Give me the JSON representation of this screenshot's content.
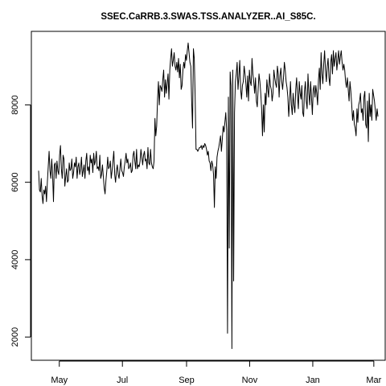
{
  "chart_data": {
    "type": "line",
    "title": "SSEC.CaRRB.3.SWAS.TSS.ANALYZER..AI_S85C.",
    "xlabel": "",
    "ylabel": "",
    "x_start": "2013-04-11",
    "x_end": "2014-03-05",
    "xlim": [
      "2013-04-04",
      "2014-03-12"
    ],
    "ylim": [
      1400,
      9900
    ],
    "x_ticks": [
      {
        "label": "May",
        "date": "2013-05-01"
      },
      {
        "label": "Jul",
        "date": "2013-07-01"
      },
      {
        "label": "Sep",
        "date": "2013-09-01"
      },
      {
        "label": "Nov",
        "date": "2013-11-01"
      },
      {
        "label": "Jan",
        "date": "2014-01-01"
      },
      {
        "label": "Mar",
        "date": "2014-03-01"
      }
    ],
    "y_ticks": [
      {
        "label": "2000",
        "value": 2000
      },
      {
        "label": "4000",
        "value": 4000
      },
      {
        "label": "6000",
        "value": 6000
      },
      {
        "label": "8000",
        "value": 8000
      }
    ],
    "grid": false,
    "legend": "none",
    "line_color": "#000000",
    "series": [
      {
        "values": [
          6300,
          5800,
          5750,
          6100,
          5650,
          5450,
          5800,
          5700,
          5900,
          5500,
          6000,
          6400,
          6800,
          6300,
          6100,
          6600,
          6200,
          5500,
          6450,
          6500,
          6100,
          6550,
          6300,
          6200,
          6700,
          6950,
          6350,
          6100,
          6700,
          6600,
          5900,
          6150,
          6350,
          6000,
          6050,
          6500,
          6300,
          6350,
          6600,
          6100,
          6250,
          6500,
          6400,
          6650,
          6100,
          6400,
          6500,
          6200,
          6350,
          6650,
          6150,
          6300,
          6450,
          6100,
          6550,
          6750,
          6300,
          6400,
          6200,
          6700,
          6500,
          6600,
          6250,
          6750,
          6450,
          6550,
          6800,
          6350,
          6400,
          6300,
          6700,
          6100,
          6200,
          6450,
          6150,
          5850,
          5700,
          6050,
          6300,
          6650,
          6350,
          6400,
          6550,
          6100,
          6300,
          6550,
          6800,
          6200,
          6000,
          6300,
          6450,
          6200,
          6100,
          6350,
          6600,
          6300,
          6250,
          6150,
          6400,
          6550,
          6750,
          6500,
          6600,
          6350,
          6400,
          6500,
          6250,
          6300,
          6700,
          6800,
          6550,
          6350,
          6850,
          6350,
          6450,
          6400,
          6550,
          6850,
          6650,
          6450,
          6700,
          6800,
          6550,
          6600,
          6350,
          6900,
          6500,
          6450,
          6850,
          6500,
          6400,
          6350,
          6550,
          7650,
          7200,
          7450,
          8150,
          8600,
          8000,
          8500,
          8450,
          8350,
          8650,
          8900,
          8200,
          8650,
          8300,
          8550,
          8800,
          8150,
          8900,
          9200,
          9450,
          9000,
          9150,
          9350,
          9000,
          8900,
          9100,
          8850,
          9200,
          8700,
          9050,
          8400,
          8500,
          8900,
          9100,
          8950,
          9300,
          9150,
          9400,
          9600,
          9350,
          9100,
          9000,
          8100,
          7400,
          9450,
          9200,
          8200,
          6850,
          6850,
          6800,
          6850,
          6900,
          6900,
          6950,
          6850,
          6950,
          6900,
          7000,
          6950,
          6850,
          6700,
          6800,
          6550,
          6500,
          6300,
          6550,
          6450,
          6200,
          5350,
          6400,
          6100,
          6650,
          6800,
          6900,
          7050,
          7200,
          6800,
          7100,
          7450,
          7300,
          7550,
          7800,
          7350,
          2100,
          8200,
          4300,
          8850,
          8500,
          1700,
          8900,
          3450,
          7800,
          8600,
          8800,
          9100,
          8400,
          8750,
          9150,
          8400,
          8150,
          8500,
          8600,
          9000,
          8800,
          8550,
          8200,
          8750,
          8100,
          8900,
          8600,
          8500,
          9200,
          8800,
          8600,
          8300,
          8700,
          8100,
          7950,
          8400,
          8800,
          8600,
          8300,
          7900,
          7200,
          8000,
          7300,
          8300,
          8000,
          8650,
          8400,
          8200,
          8800,
          8500,
          8400,
          8100,
          8300,
          8900,
          8700,
          8550,
          8450,
          9000,
          8800,
          8200,
          8750,
          8950,
          8600,
          8400,
          8700,
          9100,
          8900,
          8600,
          8450,
          8200,
          7700,
          8100,
          8600,
          8000,
          7750,
          8300,
          8000,
          7800,
          8400,
          8700,
          8250,
          7900,
          8600,
          8300,
          8150,
          8500,
          7800,
          7700,
          8350,
          8600,
          8100,
          7900,
          8800,
          8300,
          8000,
          8600,
          8200,
          7750,
          8400,
          8500,
          8200,
          8500,
          8300,
          8000,
          8650,
          8950,
          8400,
          9350,
          8800,
          8550,
          9050,
          9400,
          8900,
          8600,
          9000,
          9200,
          8700,
          8500,
          9100,
          9300,
          8800,
          9400,
          9000,
          9200,
          9350,
          8900,
          9150,
          9400,
          9050,
          9250,
          9400,
          9100,
          8900,
          9050,
          8900,
          8600,
          8450,
          8700,
          8400,
          8100,
          8600,
          8350,
          8000,
          7600,
          7850,
          7500,
          7400,
          7200,
          7900,
          7550,
          8000,
          8100,
          8300,
          7800,
          7900,
          7600,
          8200,
          8350,
          7500,
          7400,
          8100,
          7050,
          8300,
          7700,
          8000,
          7600,
          8400,
          8250,
          8100,
          7850,
          7600,
          7900,
          7700
        ]
      }
    ]
  }
}
